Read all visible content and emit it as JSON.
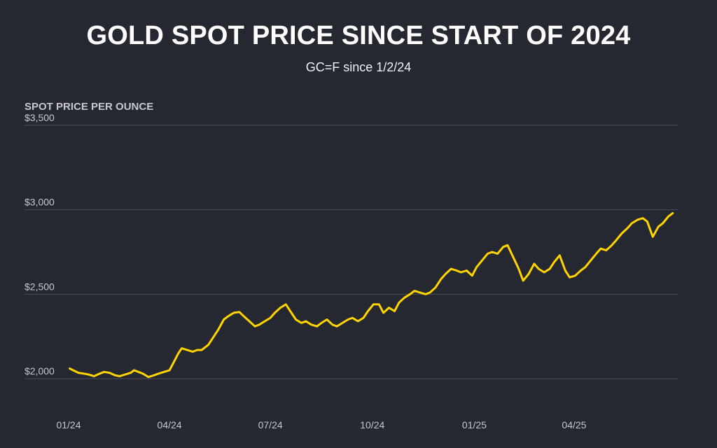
{
  "header": {
    "title": "GOLD SPOT PRICE SINCE START OF 2024",
    "subtitle": "GC=F since 1/2/24"
  },
  "chart_data": {
    "type": "line",
    "title": "GOLD SPOT PRICE SINCE START OF 2024",
    "subtitle": "GC=F since 1/2/24",
    "ylabel": "SPOT PRICE PER OUNCE",
    "xlabel": "",
    "ylim": [
      2000,
      3500
    ],
    "xlim": [
      "2024-01-01",
      "2025-07-01"
    ],
    "grid": true,
    "legend": "none",
    "yticks": [
      {
        "value": 2000,
        "label": "$2,000"
      },
      {
        "value": 2500,
        "label": "$2,500"
      },
      {
        "value": 3000,
        "label": "$3,000"
      },
      {
        "value": 3500,
        "label": "$3,500"
      }
    ],
    "xticks": [
      {
        "date": "2024-01-01",
        "label": "01/24"
      },
      {
        "date": "2024-04-01",
        "label": "04/24"
      },
      {
        "date": "2024-07-01",
        "label": "07/24"
      },
      {
        "date": "2024-10-01",
        "label": "10/24"
      },
      {
        "date": "2025-01-01",
        "label": "01/25"
      },
      {
        "date": "2025-04-01",
        "label": "04/25"
      }
    ],
    "series": [
      {
        "color": "#ffd400",
        "points": [
          [
            "2024-01-02",
            2060
          ],
          [
            "2024-01-05",
            2050
          ],
          [
            "2024-01-10",
            2035
          ],
          [
            "2024-01-15",
            2030
          ],
          [
            "2024-01-19",
            2025
          ],
          [
            "2024-01-24",
            2015
          ],
          [
            "2024-01-29",
            2030
          ],
          [
            "2024-02-02",
            2040
          ],
          [
            "2024-02-07",
            2035
          ],
          [
            "2024-02-12",
            2020
          ],
          [
            "2024-02-16",
            2015
          ],
          [
            "2024-02-21",
            2025
          ],
          [
            "2024-02-26",
            2035
          ],
          [
            "2024-02-29",
            2050
          ],
          [
            "2024-03-04",
            2040
          ],
          [
            "2024-03-08",
            2030
          ],
          [
            "2024-03-13",
            2010
          ],
          [
            "2024-03-18",
            2020
          ],
          [
            "2024-03-22",
            2030
          ],
          [
            "2024-03-27",
            2040
          ],
          [
            "2024-04-01",
            2050
          ],
          [
            "2024-04-05",
            2100
          ],
          [
            "2024-04-09",
            2150
          ],
          [
            "2024-04-12",
            2180
          ],
          [
            "2024-04-17",
            2170
          ],
          [
            "2024-04-22",
            2160
          ],
          [
            "2024-04-26",
            2170
          ],
          [
            "2024-04-30",
            2170
          ],
          [
            "2024-05-06",
            2200
          ],
          [
            "2024-05-10",
            2240
          ],
          [
            "2024-05-15",
            2290
          ],
          [
            "2024-05-20",
            2350
          ],
          [
            "2024-05-24",
            2370
          ],
          [
            "2024-05-29",
            2390
          ],
          [
            "2024-06-03",
            2395
          ],
          [
            "2024-06-07",
            2370
          ],
          [
            "2024-06-12",
            2340
          ],
          [
            "2024-06-17",
            2310
          ],
          [
            "2024-06-21",
            2320
          ],
          [
            "2024-06-26",
            2340
          ],
          [
            "2024-07-01",
            2360
          ],
          [
            "2024-07-05",
            2390
          ],
          [
            "2024-07-10",
            2420
          ],
          [
            "2024-07-15",
            2440
          ],
          [
            "2024-07-19",
            2400
          ],
          [
            "2024-07-24",
            2350
          ],
          [
            "2024-07-29",
            2330
          ],
          [
            "2024-08-02",
            2340
          ],
          [
            "2024-08-07",
            2320
          ],
          [
            "2024-08-12",
            2310
          ],
          [
            "2024-08-16",
            2330
          ],
          [
            "2024-08-21",
            2350
          ],
          [
            "2024-08-26",
            2320
          ],
          [
            "2024-08-30",
            2310
          ],
          [
            "2024-09-04",
            2330
          ],
          [
            "2024-09-09",
            2350
          ],
          [
            "2024-09-13",
            2360
          ],
          [
            "2024-09-18",
            2340
          ],
          [
            "2024-09-23",
            2360
          ],
          [
            "2024-09-27",
            2400
          ],
          [
            "2024-10-02",
            2440
          ],
          [
            "2024-10-07",
            2440
          ],
          [
            "2024-10-11",
            2390
          ],
          [
            "2024-10-16",
            2420
          ],
          [
            "2024-10-21",
            2400
          ],
          [
            "2024-10-25",
            2450
          ],
          [
            "2024-10-30",
            2480
          ],
          [
            "2024-11-04",
            2500
          ],
          [
            "2024-11-08",
            2520
          ],
          [
            "2024-11-13",
            2510
          ],
          [
            "2024-11-18",
            2500
          ],
          [
            "2024-11-22",
            2510
          ],
          [
            "2024-11-27",
            2540
          ],
          [
            "2024-12-02",
            2590
          ],
          [
            "2024-12-06",
            2620
          ],
          [
            "2024-12-11",
            2650
          ],
          [
            "2024-12-16",
            2640
          ],
          [
            "2024-12-20",
            2630
          ],
          [
            "2024-12-25",
            2640
          ],
          [
            "2024-12-30",
            2610
          ],
          [
            "2025-01-03",
            2660
          ],
          [
            "2025-01-08",
            2700
          ],
          [
            "2025-01-13",
            2740
          ],
          [
            "2025-01-17",
            2750
          ],
          [
            "2025-01-22",
            2740
          ],
          [
            "2025-01-27",
            2780
          ],
          [
            "2025-01-31",
            2790
          ],
          [
            "2025-02-05",
            2720
          ],
          [
            "2025-02-10",
            2650
          ],
          [
            "2025-02-14",
            2580
          ],
          [
            "2025-02-19",
            2620
          ],
          [
            "2025-02-24",
            2680
          ],
          [
            "2025-02-28",
            2650
          ],
          [
            "2025-03-05",
            2630
          ],
          [
            "2025-03-10",
            2650
          ],
          [
            "2025-03-14",
            2690
          ],
          [
            "2025-03-19",
            2730
          ],
          [
            "2025-03-24",
            2640
          ],
          [
            "2025-03-28",
            2600
          ],
          [
            "2025-04-02",
            2610
          ],
          [
            "2025-04-07",
            2640
          ],
          [
            "2025-04-11",
            2660
          ],
          [
            "2025-04-16",
            2700
          ],
          [
            "2025-04-21",
            2740
          ],
          [
            "2025-04-25",
            2770
          ],
          [
            "2025-04-30",
            2760
          ],
          [
            "2025-05-05",
            2790
          ],
          [
            "2025-05-09",
            2820
          ],
          [
            "2025-05-14",
            2860
          ],
          [
            "2025-05-19",
            2890
          ],
          [
            "2025-05-23",
            2920
          ],
          [
            "2025-05-28",
            2940
          ],
          [
            "2025-06-02",
            2950
          ],
          [
            "2025-06-06",
            2930
          ],
          [
            "2025-06-11",
            2840
          ],
          [
            "2025-06-16",
            2900
          ],
          [
            "2025-06-20",
            2920
          ],
          [
            "2025-06-25",
            2960
          ],
          [
            "2025-06-29",
            2980
          ]
        ]
      }
    ]
  }
}
